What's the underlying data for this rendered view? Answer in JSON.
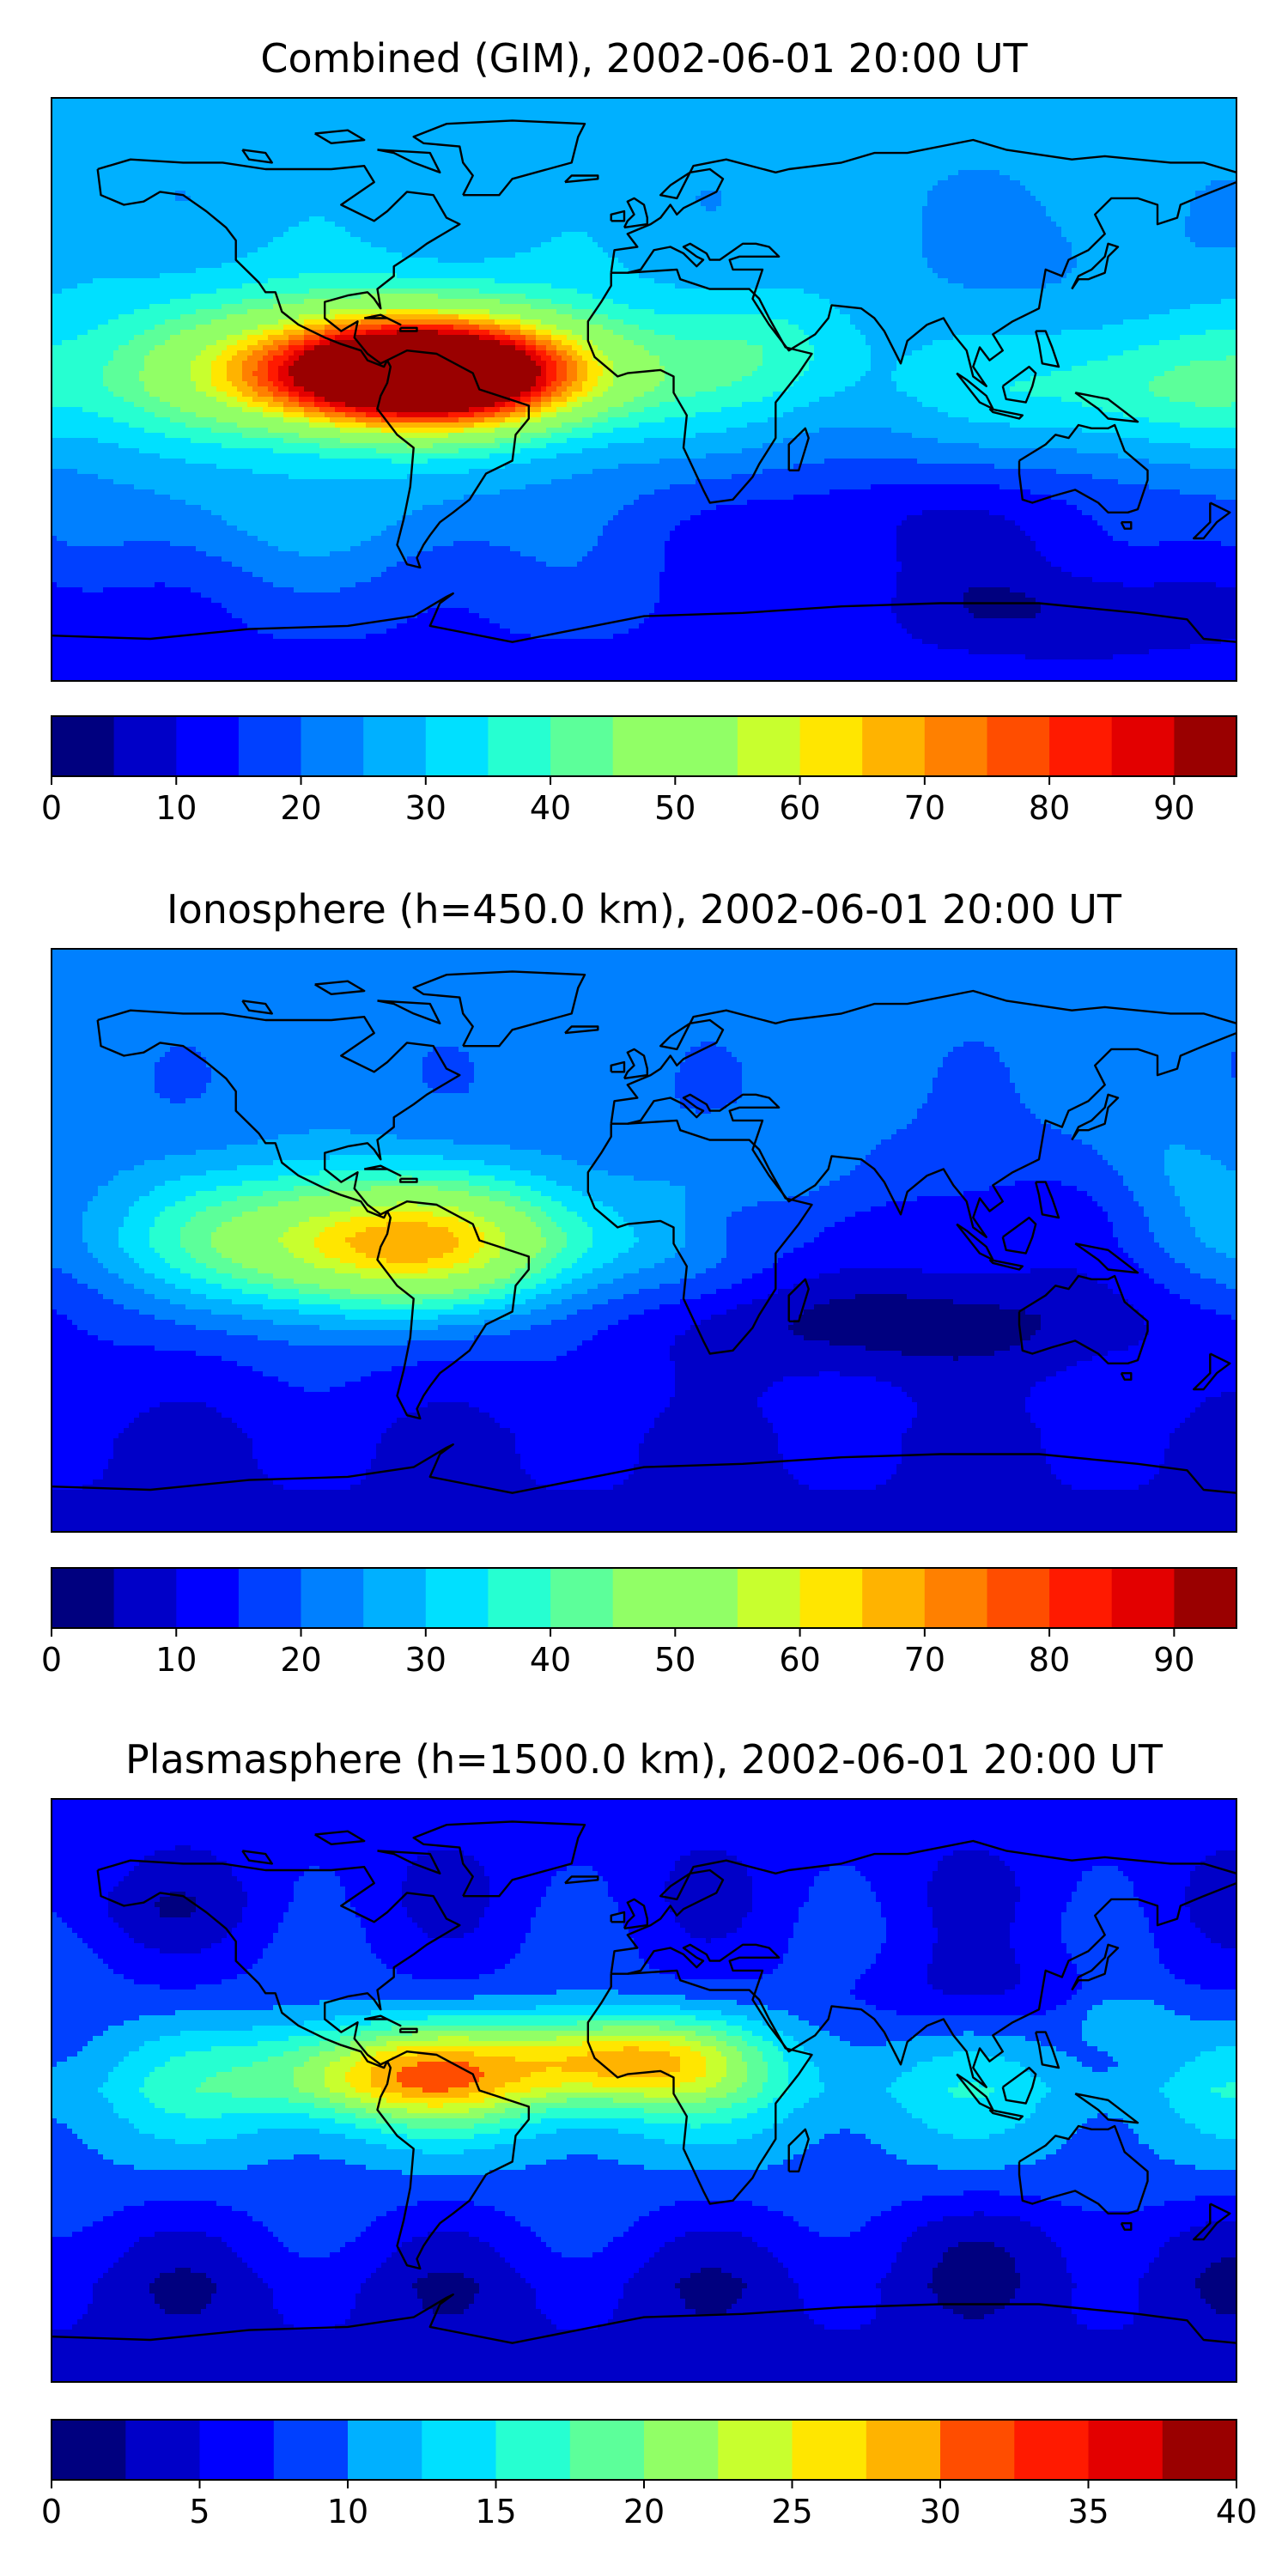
{
  "chart_data": [
    {
      "type": "heatmap",
      "title": "Combined (GIM), 2002-06-01 20:00 UT",
      "quantity": "TEC",
      "colormap": "jet",
      "levels": [
        0,
        5,
        10,
        15,
        20,
        25,
        30,
        35,
        40,
        45,
        50,
        55,
        60,
        65,
        70,
        75,
        80,
        85,
        90,
        95
      ],
      "colorbar_ticks": [
        "0",
        "10",
        "20",
        "30",
        "40",
        "50",
        "60",
        "70",
        "80",
        "90"
      ],
      "colorbar_tick_values": [
        0,
        10,
        20,
        30,
        40,
        50,
        60,
        70,
        80,
        90
      ],
      "vmin": 0,
      "vmax": 95,
      "lon_range": [
        -180,
        180
      ],
      "lat_range": [
        -90,
        90
      ],
      "features": [
        {
          "lon": -68,
          "lat": 5,
          "value": 87,
          "sx": 34,
          "sy": 11
        },
        {
          "lon": -85,
          "lat": 8,
          "value": 20,
          "sx": 55,
          "sy": 17
        },
        {
          "lon": 38,
          "lat": 12,
          "value": 8,
          "sx": 18,
          "sy": 11
        },
        {
          "lon": 150,
          "lat": 0,
          "value": 10,
          "sx": 28,
          "sy": 13
        },
        {
          "lon": 125,
          "lat": 40,
          "value": -4,
          "sx": 35,
          "sy": 16
        },
        {
          "lon": 85,
          "lat": -40,
          "value": -12,
          "sx": 60,
          "sy": 15
        },
        {
          "lon": 130,
          "lat": -68,
          "value": -10,
          "sx": 45,
          "sy": 10
        },
        {
          "lon": -105,
          "lat": -40,
          "value": 5,
          "sx": 40,
          "sy": 12
        }
      ],
      "base": [
        {
          "lat": -90,
          "value": 12
        },
        {
          "lat": -60,
          "value": 18
        },
        {
          "lat": -30,
          "value": 24
        },
        {
          "lat": 0,
          "value": 30
        },
        {
          "lat": 30,
          "value": 28
        },
        {
          "lat": 60,
          "value": 27
        },
        {
          "lat": 90,
          "value": 28
        }
      ]
    },
    {
      "type": "heatmap",
      "title": "Ionosphere  (h=450.0 km), 2002-06-01 20:00 UT",
      "quantity": "TEC",
      "colormap": "jet",
      "levels": [
        0,
        5,
        10,
        15,
        20,
        25,
        30,
        35,
        40,
        45,
        50,
        55,
        60,
        65,
        70,
        75,
        80,
        85,
        90,
        95
      ],
      "colorbar_ticks": [
        "0",
        "10",
        "20",
        "30",
        "40",
        "50",
        "60",
        "70",
        "80",
        "90"
      ],
      "colorbar_tick_values": [
        0,
        10,
        20,
        30,
        40,
        50,
        60,
        70,
        80,
        90
      ],
      "vmin": 0,
      "vmax": 95,
      "lon_range": [
        -180,
        180
      ],
      "lat_range": [
        -90,
        90
      ],
      "features": [
        {
          "lon": -75,
          "lat": -2,
          "value": 38,
          "sx": 40,
          "sy": 14
        },
        {
          "lon": -95,
          "lat": 5,
          "value": 10,
          "sx": 55,
          "sy": 18
        },
        {
          "lon": 30,
          "lat": 5,
          "value": -6,
          "sx": 14,
          "sy": 8
        },
        {
          "lon": 40,
          "lat": 22,
          "value": 5,
          "sx": 20,
          "sy": 10
        },
        {
          "lon": 110,
          "lat": 5,
          "value": -10,
          "sx": 40,
          "sy": 14
        },
        {
          "lon": 80,
          "lat": -25,
          "value": -14,
          "sx": 60,
          "sy": 12
        },
        {
          "lon": 160,
          "lat": 20,
          "value": 6,
          "sx": 15,
          "sy": 18
        }
      ],
      "base": [
        {
          "lat": -90,
          "value": 9
        },
        {
          "lat": -60,
          "value": 10
        },
        {
          "lat": -30,
          "value": 16
        },
        {
          "lat": 0,
          "value": 22
        },
        {
          "lat": 30,
          "value": 20
        },
        {
          "lat": 60,
          "value": 22
        },
        {
          "lat": 90,
          "value": 24
        }
      ]
    },
    {
      "type": "heatmap",
      "title": "Plasmasphere (h=1500.0 km), 2002-06-01 20:00 UT",
      "quantity": "TEC",
      "colormap": "jet",
      "levels": [
        0,
        2.5,
        5,
        7.5,
        10,
        12.5,
        15,
        17.5,
        20,
        22.5,
        25,
        27.5,
        30,
        32.5,
        35,
        37.5,
        40
      ],
      "colorbar_ticks": [
        "0",
        "5",
        "10",
        "15",
        "20",
        "25",
        "30",
        "35",
        "40"
      ],
      "colorbar_tick_values": [
        0,
        5,
        10,
        15,
        20,
        25,
        30,
        35,
        40
      ],
      "vmin": 0,
      "vmax": 40,
      "lon_range": [
        -180,
        180
      ],
      "lat_range": [
        -90,
        90
      ],
      "features": [
        {
          "lon": -75,
          "lat": 5,
          "value": 12,
          "sx": 30,
          "sy": 10
        },
        {
          "lon": -5,
          "lat": 10,
          "value": 13,
          "sx": 25,
          "sy": 9
        },
        {
          "lon": -40,
          "lat": 7,
          "value": 6,
          "sx": 55,
          "sy": 12
        },
        {
          "lon": 145,
          "lat": 22,
          "value": 4,
          "sx": 10,
          "sy": 6
        },
        {
          "lon": 100,
          "lat": 30,
          "value": -3,
          "sx": 25,
          "sy": 10
        },
        {
          "lon": -150,
          "lat": 55,
          "value": -2,
          "sx": 25,
          "sy": 8
        },
        {
          "lon": 120,
          "lat": -45,
          "value": -2,
          "sx": 45,
          "sy": 10
        }
      ],
      "base": [
        {
          "lat": -90,
          "value": 4
        },
        {
          "lat": -60,
          "value": 4
        },
        {
          "lat": -30,
          "value": 9
        },
        {
          "lat": 0,
          "value": 13
        },
        {
          "lat": 30,
          "value": 8
        },
        {
          "lat": 60,
          "value": 6
        },
        {
          "lat": 90,
          "value": 6
        }
      ]
    }
  ],
  "colors": {
    "jet": [
      "#00007f",
      "#0000c8",
      "#0000ff",
      "#0040ff",
      "#0080ff",
      "#00b0ff",
      "#00e0ff",
      "#26ffd1",
      "#5cff9a",
      "#91ff66",
      "#c8ff2e",
      "#ffe600",
      "#ffb300",
      "#ff8000",
      "#ff4d00",
      "#ff1a00",
      "#e30000",
      "#9a0000"
    ],
    "coast": "#000000"
  }
}
